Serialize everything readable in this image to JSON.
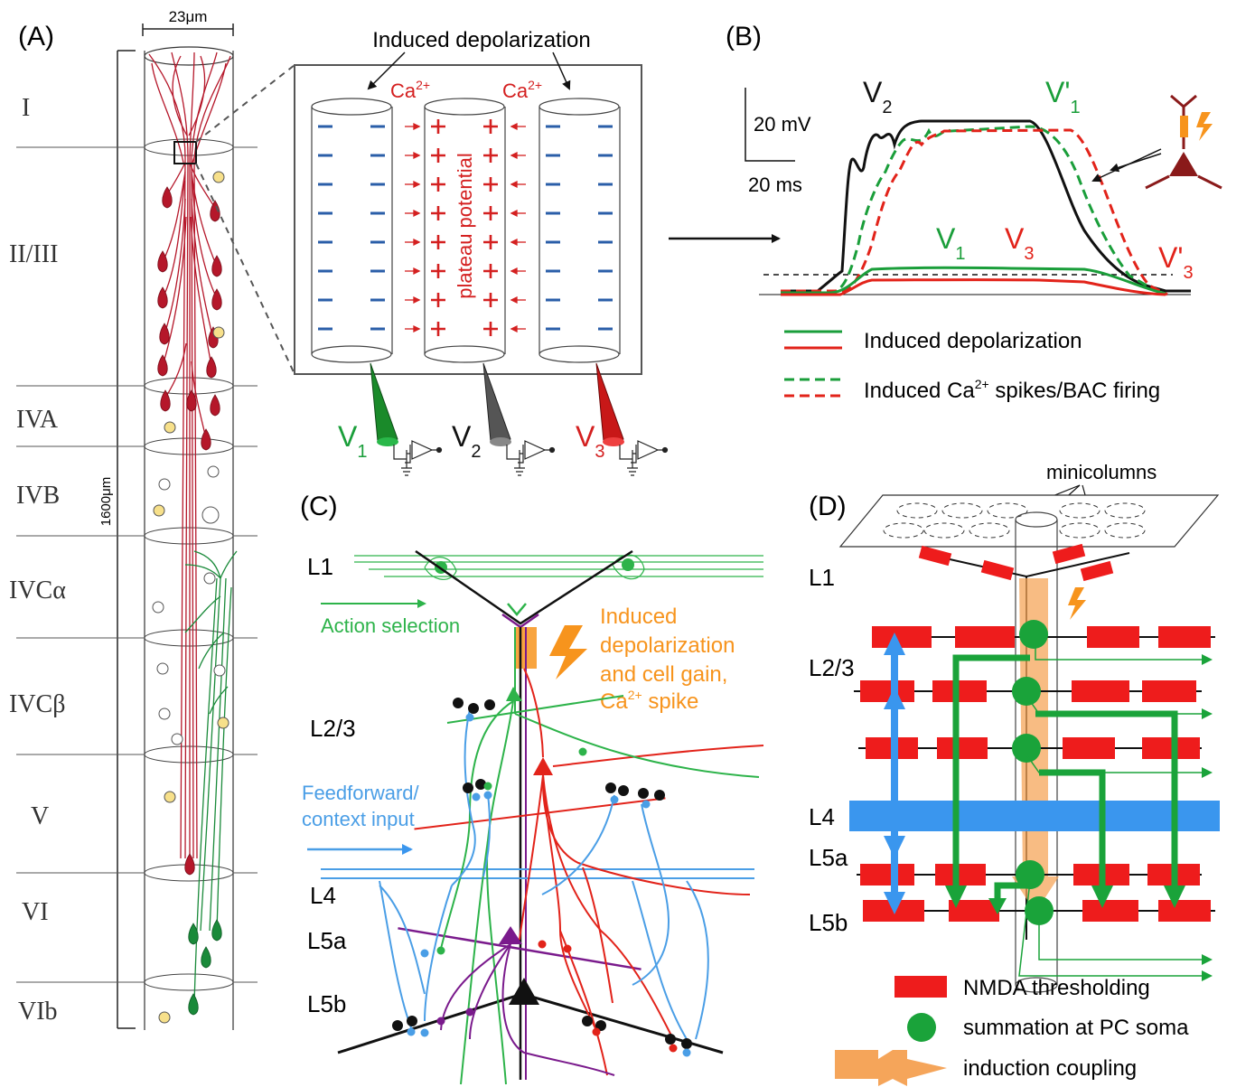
{
  "panels": {
    "a": "(A)",
    "b": "(B)",
    "c": "(C)",
    "d": "(D)"
  },
  "panel_a": {
    "width_label": "23μm",
    "height_label": "1600μm",
    "layers": [
      "I",
      "II/III",
      "IVA",
      "IVB",
      "IVCα",
      "IVCβ",
      "V",
      "VI",
      "VIb"
    ]
  },
  "inset": {
    "title": "Induced depolarization",
    "ca_left": "Ca",
    "ca_right": "Ca",
    "ca_sup": "2+",
    "plateau": "plateau potential",
    "v1": "V",
    "v2": "V",
    "v3": "V",
    "sub1": "1",
    "sub2": "2",
    "sub3": "3"
  },
  "panel_b": {
    "scale_v": "20 mV",
    "scale_t": "20 ms",
    "v2": "V",
    "v2_sub": "2",
    "v1p": "V'",
    "v1p_sub": "1",
    "v1": "V",
    "v1_sub": "1",
    "v3": "V",
    "v3_sub": "3",
    "v3p": "V'",
    "v3p_sub": "3",
    "legend_solid": "Induced depolarization",
    "legend_dashed_pre": "Induced Ca",
    "legend_dashed_sup": "2+",
    "legend_dashed_post": " spikes/BAC firing",
    "colors": {
      "green": "#1a9e3a",
      "red": "#e2231a",
      "black": "#111111"
    }
  },
  "panel_c": {
    "l1": "L1",
    "l23": "L2/3",
    "l4": "L4",
    "l5a": "L5a",
    "l5b": "L5b",
    "action": "Action selection",
    "ff1": "Feedforward/",
    "ff2": "context input",
    "ind1": "Induced",
    "ind2": "depolarization",
    "ind3": "and cell gain,",
    "ind4_pre": "Ca",
    "ind4_sup": "2+",
    "ind4_post": " spike",
    "colors": {
      "green": "#2db34a",
      "blue": "#4a9ee6",
      "red": "#e2231a",
      "purple": "#7a1a8c",
      "orange": "#f7941d"
    }
  },
  "panel_d": {
    "minicolumns": "minicolumns",
    "l1": "L1",
    "l23": "L2/3",
    "l4": "L4",
    "l5a": "L5a",
    "l5b": "L5b",
    "legend_nmda": "NMDA thresholding",
    "legend_sum": "summation at PC soma",
    "legend_ind": "induction coupling",
    "colors": {
      "red": "#ee1c1c",
      "green": "#1aa33a",
      "blue": "#3a96ee",
      "orange": "#f5a55a"
    }
  }
}
